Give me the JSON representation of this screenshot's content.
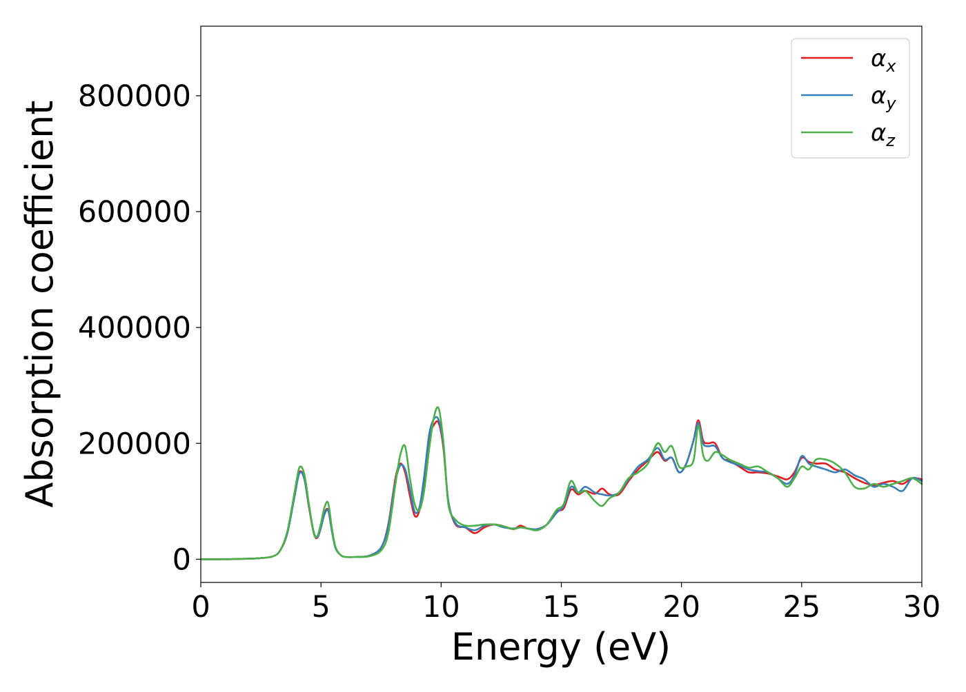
{
  "chart_data": {
    "type": "line",
    "title": "",
    "xlabel": "Energy (eV)",
    "ylabel": "Absorption coefficient",
    "xlim": [
      0,
      30
    ],
    "ylim": [
      -40000,
      920000
    ],
    "xticks": [
      0,
      5,
      10,
      15,
      20,
      25,
      30
    ],
    "yticks": [
      0,
      200000,
      400000,
      600000,
      800000
    ],
    "grid": false,
    "legend": {
      "position": "top-right",
      "entries": [
        {
          "label": "α",
          "sub": "x",
          "color": "#e41a1c"
        },
        {
          "label": "α",
          "sub": "y",
          "color": "#377eb8"
        },
        {
          "label": "α",
          "sub": "z",
          "color": "#4daf4a"
        }
      ]
    },
    "series": [
      {
        "name": "αx",
        "color": "#e41a1c",
        "x": [
          0,
          1,
          2,
          2.5,
          3,
          3.3,
          3.6,
          3.9,
          4.1,
          4.3,
          4.5,
          4.7,
          4.85,
          5.0,
          5.15,
          5.3,
          5.45,
          5.6,
          5.8,
          6.0,
          6.5,
          7.0,
          7.5,
          7.8,
          8.1,
          8.3,
          8.5,
          8.7,
          8.9,
          9.1,
          9.3,
          9.5,
          9.7,
          9.9,
          10.1,
          10.3,
          10.6,
          11.0,
          11.4,
          11.8,
          12.2,
          12.6,
          13.0,
          13.3,
          13.6,
          14.0,
          14.4,
          14.8,
          15.1,
          15.4,
          15.7,
          16.0,
          16.4,
          16.7,
          17.0,
          17.4,
          17.8,
          18.2,
          18.6,
          19.0,
          19.3,
          19.6,
          19.9,
          20.2,
          20.5,
          20.7,
          20.9,
          21.1,
          21.4,
          21.7,
          22.0,
          22.4,
          22.8,
          23.2,
          23.6,
          24.0,
          24.4,
          24.7,
          25.0,
          25.3,
          25.6,
          26.0,
          26.4,
          26.8,
          27.2,
          27.6,
          28.0,
          28.4,
          28.8,
          29.2,
          29.6,
          30.0
        ],
        "values": [
          0,
          0,
          1000,
          2000,
          5000,
          15000,
          45000,
          110000,
          150000,
          140000,
          90000,
          45000,
          37000,
          55000,
          80000,
          85000,
          50000,
          20000,
          8000,
          4000,
          4000,
          6000,
          20000,
          60000,
          140000,
          165000,
          150000,
          110000,
          75000,
          85000,
          140000,
          210000,
          232000,
          235000,
          190000,
          100000,
          60000,
          55000,
          45000,
          55000,
          60000,
          57000,
          52000,
          58000,
          53000,
          52000,
          60000,
          82000,
          88000,
          120000,
          112000,
          118000,
          113000,
          122000,
          112000,
          112000,
          135000,
          155000,
          170000,
          185000,
          170000,
          175000,
          150000,
          165000,
          205000,
          240000,
          205000,
          200000,
          200000,
          175000,
          170000,
          160000,
          150000,
          150000,
          148000,
          143000,
          138000,
          150000,
          175000,
          168000,
          165000,
          165000,
          155000,
          150000,
          140000,
          132000,
          128000,
          132000,
          135000,
          130000,
          140000,
          138000
        ]
      },
      {
        "name": "αy",
        "color": "#377eb8",
        "x": [
          0,
          1,
          2,
          2.5,
          3,
          3.3,
          3.6,
          3.9,
          4.1,
          4.3,
          4.5,
          4.7,
          4.85,
          5.0,
          5.15,
          5.3,
          5.45,
          5.6,
          5.8,
          6.0,
          6.5,
          7.0,
          7.5,
          7.8,
          8.1,
          8.3,
          8.5,
          8.7,
          8.9,
          9.1,
          9.3,
          9.5,
          9.7,
          9.9,
          10.1,
          10.3,
          10.6,
          11.0,
          11.4,
          11.8,
          12.2,
          12.6,
          13.0,
          13.3,
          13.6,
          14.0,
          14.4,
          14.8,
          15.1,
          15.4,
          15.7,
          16.0,
          16.4,
          16.7,
          17.0,
          17.4,
          17.8,
          18.2,
          18.6,
          19.0,
          19.3,
          19.6,
          19.9,
          20.2,
          20.5,
          20.7,
          20.9,
          21.1,
          21.4,
          21.7,
          22.0,
          22.4,
          22.8,
          23.2,
          23.6,
          24.0,
          24.4,
          24.7,
          25.0,
          25.3,
          25.6,
          26.0,
          26.4,
          26.8,
          27.2,
          27.6,
          28.0,
          28.4,
          28.8,
          29.2,
          29.6,
          30.0
        ],
        "values": [
          0,
          0,
          1000,
          2000,
          5000,
          15000,
          45000,
          108000,
          148000,
          140000,
          92000,
          47000,
          38000,
          55000,
          78000,
          84000,
          50000,
          20000,
          8000,
          4000,
          4000,
          6000,
          20000,
          58000,
          135000,
          162000,
          155000,
          120000,
          82000,
          90000,
          145000,
          215000,
          242000,
          240000,
          195000,
          100000,
          62000,
          55000,
          50000,
          58000,
          60000,
          55000,
          53000,
          55000,
          53000,
          52000,
          60000,
          80000,
          92000,
          125000,
          115000,
          125000,
          115000,
          112000,
          110000,
          115000,
          138000,
          160000,
          172000,
          192000,
          172000,
          175000,
          150000,
          165000,
          205000,
          235000,
          200000,
          195000,
          195000,
          175000,
          168000,
          162000,
          155000,
          152000,
          150000,
          140000,
          130000,
          145000,
          178000,
          165000,
          160000,
          155000,
          150000,
          155000,
          145000,
          138000,
          125000,
          130000,
          125000,
          118000,
          140000,
          135000
        ]
      },
      {
        "name": "αz",
        "color": "#4daf4a",
        "x": [
          0,
          1,
          2,
          2.5,
          3,
          3.3,
          3.6,
          3.9,
          4.1,
          4.3,
          4.5,
          4.7,
          4.85,
          5.0,
          5.15,
          5.3,
          5.45,
          5.6,
          5.8,
          6.0,
          6.5,
          7.0,
          7.5,
          7.8,
          8.1,
          8.3,
          8.5,
          8.7,
          8.9,
          9.1,
          9.3,
          9.5,
          9.7,
          9.9,
          10.1,
          10.3,
          10.6,
          11.0,
          11.4,
          11.8,
          12.2,
          12.6,
          13.0,
          13.3,
          13.6,
          14.0,
          14.4,
          14.8,
          15.1,
          15.4,
          15.7,
          16.0,
          16.4,
          16.7,
          17.0,
          17.4,
          17.8,
          18.2,
          18.6,
          19.0,
          19.3,
          19.6,
          19.9,
          20.2,
          20.5,
          20.7,
          20.9,
          21.1,
          21.4,
          21.7,
          22.0,
          22.4,
          22.8,
          23.2,
          23.6,
          24.0,
          24.4,
          24.7,
          25.0,
          25.3,
          25.6,
          26.0,
          26.4,
          26.8,
          27.2,
          27.6,
          28.0,
          28.4,
          28.8,
          29.2,
          29.6,
          30.0
        ],
        "values": [
          0,
          0,
          1000,
          2000,
          5000,
          15000,
          48000,
          115000,
          158000,
          148000,
          95000,
          45000,
          40000,
          62000,
          90000,
          97000,
          55000,
          22000,
          8000,
          4000,
          4000,
          5000,
          15000,
          45000,
          130000,
          180000,
          195000,
          140000,
          95000,
          85000,
          120000,
          190000,
          245000,
          260000,
          200000,
          95000,
          68000,
          58000,
          58000,
          60000,
          60000,
          57000,
          52000,
          55000,
          53000,
          50000,
          60000,
          85000,
          95000,
          135000,
          115000,
          118000,
          100000,
          92000,
          105000,
          115000,
          140000,
          150000,
          165000,
          200000,
          185000,
          195000,
          160000,
          160000,
          170000,
          230000,
          180000,
          170000,
          185000,
          180000,
          172000,
          165000,
          158000,
          160000,
          150000,
          140000,
          125000,
          140000,
          160000,
          155000,
          172000,
          172000,
          165000,
          150000,
          125000,
          122000,
          130000,
          125000,
          130000,
          135000,
          140000,
          130000
        ]
      }
    ]
  }
}
